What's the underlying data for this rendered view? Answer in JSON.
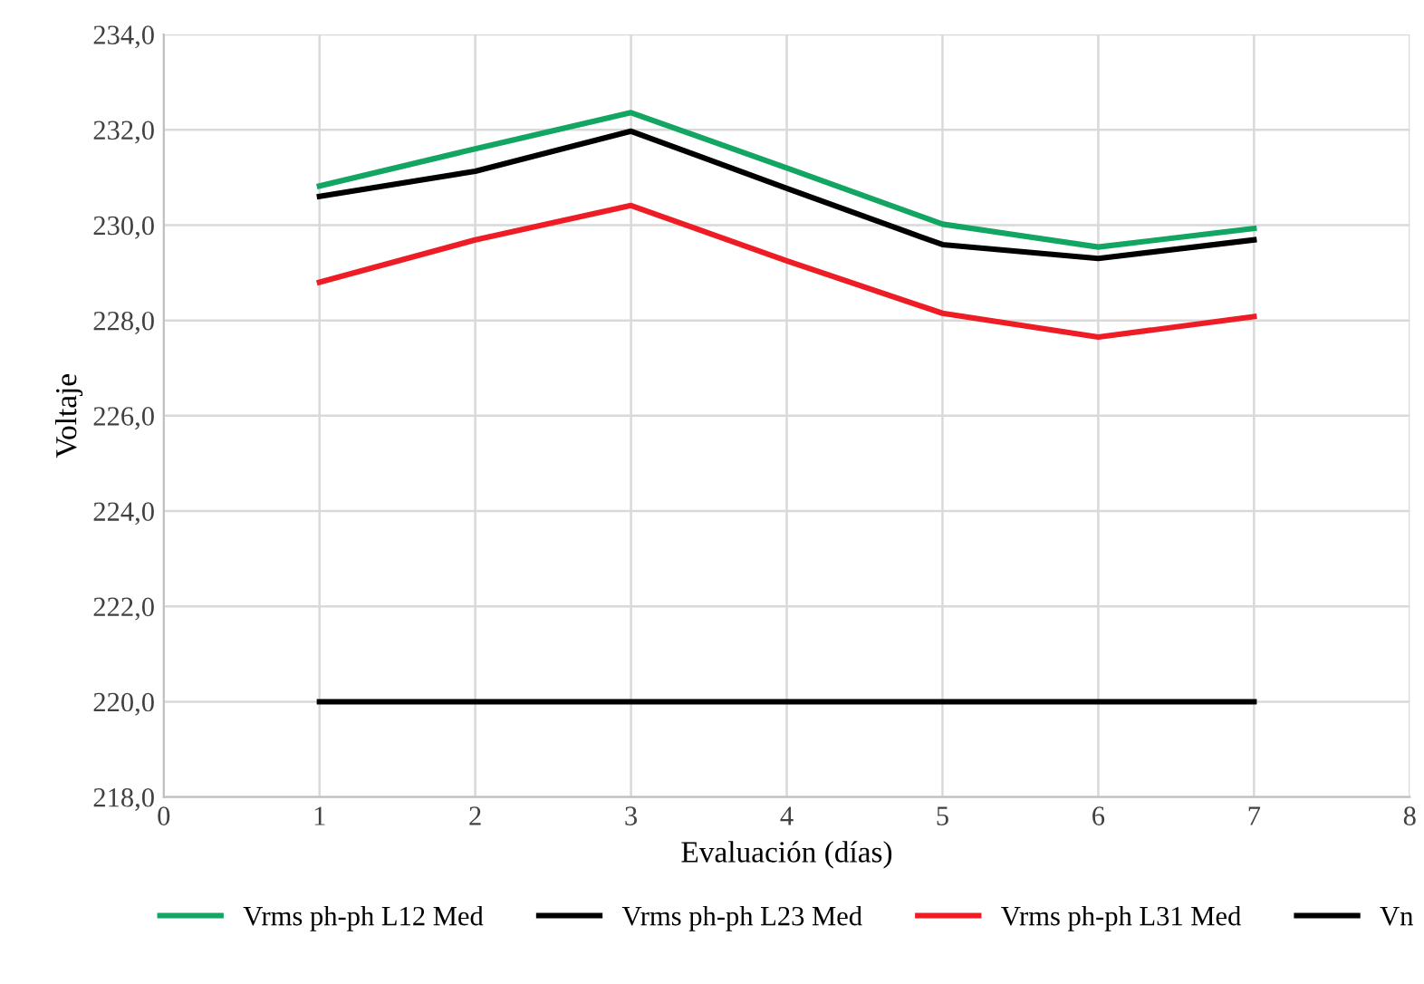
{
  "chart_data": {
    "type": "line",
    "xlabel": "Evaluación (días)",
    "ylabel": "Voltaje",
    "x": [
      1,
      2,
      3,
      4,
      5,
      6,
      7
    ],
    "series": [
      {
        "name": "Vrms ph-ph L12 Med",
        "color": "#13a562",
        "values": [
          230.82,
          231.6,
          232.36,
          231.2,
          230.02,
          229.54,
          229.93
        ]
      },
      {
        "name": "Vrms ph-ph L23 Med",
        "color": "#000000",
        "values": [
          230.6,
          231.13,
          231.97,
          230.77,
          229.59,
          229.3,
          229.69
        ]
      },
      {
        "name": "Vrms ph-ph L31 Med",
        "color": "#ee1c25",
        "values": [
          228.8,
          229.69,
          230.41,
          229.25,
          228.15,
          227.65,
          228.08
        ]
      },
      {
        "name": "Vn",
        "color": "#000000",
        "values": [
          220,
          220,
          220,
          220,
          220,
          220,
          220
        ]
      }
    ],
    "xlim": [
      0,
      8
    ],
    "xticks": [
      0,
      1,
      2,
      3,
      4,
      5,
      6,
      7,
      8
    ],
    "ylim": [
      218,
      234
    ],
    "yticks": [
      {
        "value": 218,
        "label": "218,0"
      },
      {
        "value": 220,
        "label": "220,0"
      },
      {
        "value": 222,
        "label": "222,0"
      },
      {
        "value": 224,
        "label": "224,0"
      },
      {
        "value": 226,
        "label": "226,0"
      },
      {
        "value": 228,
        "label": "228,0"
      },
      {
        "value": 230,
        "label": "230,0"
      },
      {
        "value": 232,
        "label": "232,0"
      },
      {
        "value": 234,
        "label": "234,0"
      }
    ],
    "grid": true,
    "legend": "bottom",
    "line_style": "solid",
    "marker": "none"
  }
}
